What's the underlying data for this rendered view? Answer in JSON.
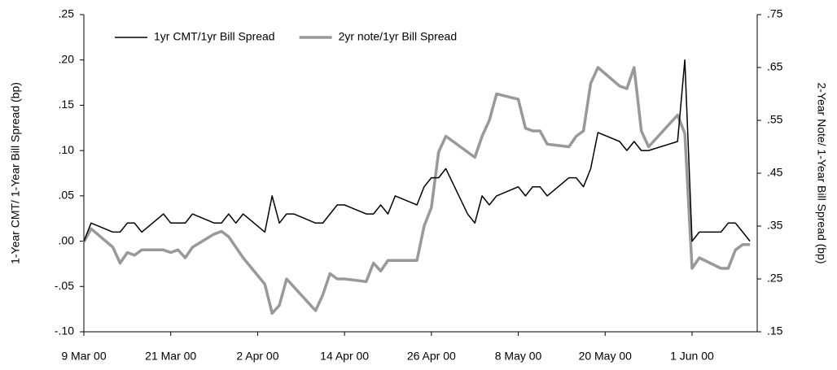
{
  "chart_data": {
    "type": "line",
    "x": [
      "2000-03-09",
      "2000-03-10",
      "2000-03-13",
      "2000-03-14",
      "2000-03-15",
      "2000-03-16",
      "2000-03-17",
      "2000-03-20",
      "2000-03-21",
      "2000-03-22",
      "2000-03-23",
      "2000-03-24",
      "2000-03-27",
      "2000-03-28",
      "2000-03-29",
      "2000-03-30",
      "2000-03-31",
      "2000-04-03",
      "2000-04-04",
      "2000-04-05",
      "2000-04-06",
      "2000-04-07",
      "2000-04-10",
      "2000-04-11",
      "2000-04-12",
      "2000-04-13",
      "2000-04-14",
      "2000-04-17",
      "2000-04-18",
      "2000-04-19",
      "2000-04-20",
      "2000-04-21",
      "2000-04-24",
      "2000-04-25",
      "2000-04-26",
      "2000-04-27",
      "2000-04-28",
      "2000-05-01",
      "2000-05-02",
      "2000-05-03",
      "2000-05-04",
      "2000-05-05",
      "2000-05-08",
      "2000-05-09",
      "2000-05-10",
      "2000-05-11",
      "2000-05-12",
      "2000-05-15",
      "2000-05-16",
      "2000-05-17",
      "2000-05-18",
      "2000-05-19",
      "2000-05-22",
      "2000-05-23",
      "2000-05-24",
      "2000-05-25",
      "2000-05-26",
      "2000-05-30",
      "2000-05-31",
      "2000-06-01",
      "2000-06-02",
      "2000-06-05",
      "2000-06-06",
      "2000-06-07",
      "2000-06-08",
      "2000-06-09"
    ],
    "series": [
      {
        "name": "1yr CMT/1yr Bill Spread",
        "color": "#000000",
        "axis": "y",
        "values": [
          0.0,
          0.02,
          0.01,
          0.01,
          0.02,
          0.02,
          0.01,
          0.03,
          0.02,
          0.02,
          0.02,
          0.03,
          0.02,
          0.02,
          0.03,
          0.02,
          0.03,
          0.01,
          0.05,
          0.02,
          0.03,
          0.03,
          0.02,
          0.02,
          0.03,
          0.04,
          0.04,
          0.03,
          0.03,
          0.04,
          0.03,
          0.05,
          0.04,
          0.06,
          0.07,
          0.07,
          0.08,
          0.03,
          0.02,
          0.05,
          0.04,
          0.05,
          0.06,
          0.05,
          0.06,
          0.06,
          0.05,
          0.07,
          0.07,
          0.06,
          0.08,
          0.12,
          0.11,
          0.1,
          0.11,
          0.1,
          0.1,
          0.11,
          0.2,
          0.0,
          0.01,
          0.01,
          0.02,
          0.02,
          0.01,
          0.0
        ]
      },
      {
        "name": "2yr note/1yr Bill Spread",
        "color": "#999999",
        "axis": "y2",
        "values": [
          0.32,
          0.345,
          0.31,
          0.28,
          0.3,
          0.295,
          0.305,
          0.305,
          0.3,
          0.305,
          0.29,
          0.31,
          0.335,
          0.34,
          0.33,
          0.31,
          0.29,
          0.24,
          0.185,
          0.2,
          0.25,
          0.235,
          0.19,
          0.22,
          0.26,
          0.25,
          0.25,
          0.245,
          0.28,
          0.265,
          0.285,
          0.285,
          0.285,
          0.35,
          0.385,
          0.49,
          0.52,
          0.49,
          0.48,
          0.52,
          0.55,
          0.6,
          0.59,
          0.535,
          0.53,
          0.53,
          0.505,
          0.5,
          0.52,
          0.53,
          0.62,
          0.65,
          0.615,
          0.61,
          0.65,
          0.53,
          0.5,
          0.56,
          0.525,
          0.27,
          0.29,
          0.27,
          0.27,
          0.305,
          0.315,
          0.315
        ]
      }
    ],
    "xlim": [
      "2000-03-09",
      "2000-06-10"
    ],
    "xticks": [
      {
        "value": "2000-03-09",
        "label": "9 Mar 00"
      },
      {
        "value": "2000-03-21",
        "label": "21 Mar 00"
      },
      {
        "value": "2000-04-02",
        "label": "2 Apr 00"
      },
      {
        "value": "2000-04-14",
        "label": "14 Apr 00"
      },
      {
        "value": "2000-04-26",
        "label": "26 Apr 00"
      },
      {
        "value": "2000-05-08",
        "label": "8 May 00"
      },
      {
        "value": "2000-05-20",
        "label": "20 May 00"
      },
      {
        "value": "2000-06-01",
        "label": "1 Jun 00"
      }
    ],
    "ylim": [
      -0.1,
      0.25
    ],
    "yticks": [
      {
        "value": -0.1,
        "label": "-.10"
      },
      {
        "value": -0.05,
        "label": "-.05"
      },
      {
        "value": 0.0,
        "label": ".00"
      },
      {
        "value": 0.05,
        "label": ".05"
      },
      {
        "value": 0.1,
        "label": ".10"
      },
      {
        "value": 0.15,
        "label": ".15"
      },
      {
        "value": 0.2,
        "label": ".20"
      },
      {
        "value": 0.25,
        "label": ".25"
      }
    ],
    "y2lim": [
      0.15,
      0.75
    ],
    "y2ticks": [
      {
        "value": 0.15,
        "label": ".15"
      },
      {
        "value": 0.25,
        "label": ".25"
      },
      {
        "value": 0.35,
        "label": ".35"
      },
      {
        "value": 0.45,
        "label": ".45"
      },
      {
        "value": 0.55,
        "label": ".55"
      },
      {
        "value": 0.65,
        "label": ".65"
      },
      {
        "value": 0.75,
        "label": ".75"
      }
    ],
    "ylabel": "1-Year CMT/ 1-Year Bill Spread (bp)",
    "y2label": "2-Year Note/ 1-Year Bill Spread (bp)",
    "legend": "upper left"
  }
}
